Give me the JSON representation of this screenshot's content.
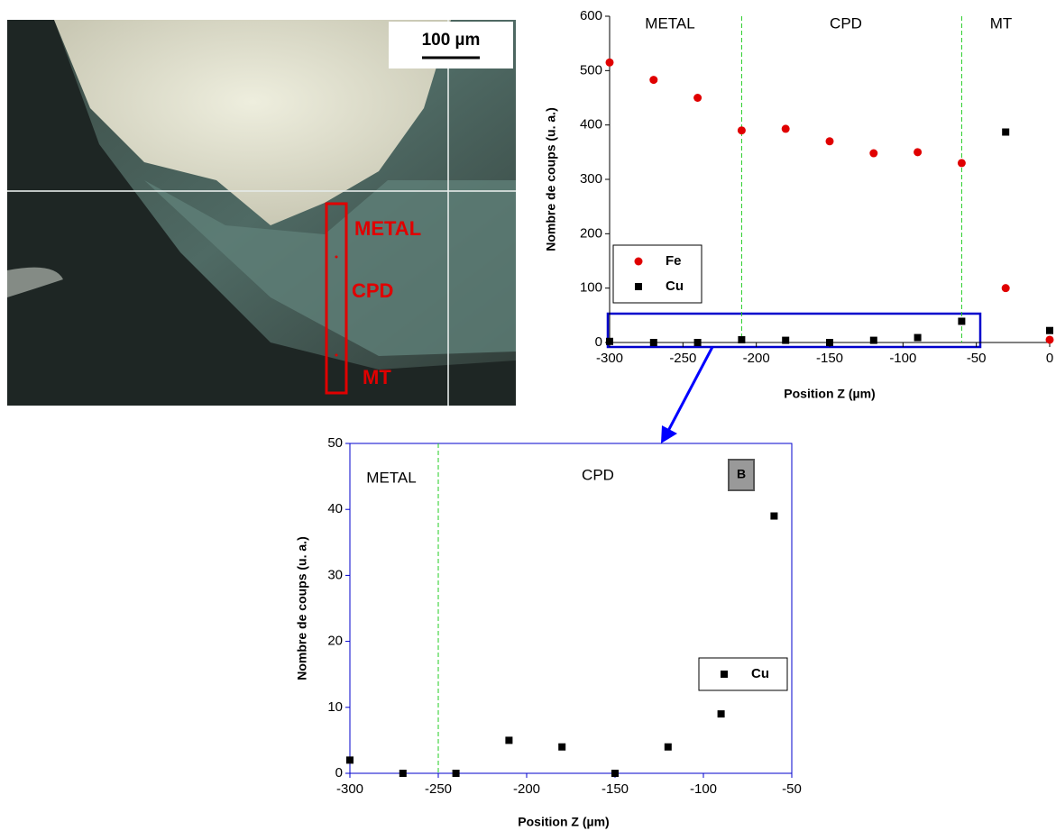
{
  "image": {
    "scale_bar": "100 µm",
    "labels": [
      "METAL",
      "CPD",
      "MT"
    ]
  },
  "chart_data": [
    {
      "type": "scatter",
      "xlabel": "Position Z (µm)",
      "ylabel": "Nombre de coups (u. a.)",
      "x": [
        -300,
        -270,
        -240,
        -210,
        -180,
        -150,
        -120,
        -90,
        -60,
        -30,
        0
      ],
      "series": [
        {
          "name": "Fe",
          "color": "#e00000",
          "marker": "circle",
          "values": [
            515,
            483,
            450,
            390,
            393,
            370,
            348,
            350,
            330,
            100,
            5
          ]
        },
        {
          "name": "Cu",
          "color": "#000000",
          "marker": "square",
          "values": [
            2,
            0,
            0,
            5,
            4,
            0,
            4,
            9,
            39,
            387,
            22
          ]
        }
      ],
      "xlim": [
        -300,
        0
      ],
      "ylim": [
        0,
        600
      ],
      "xticks": [
        -300,
        -250,
        -200,
        -150,
        -100,
        -50,
        0
      ],
      "yticks": [
        0,
        100,
        200,
        300,
        400,
        500,
        600
      ],
      "vlines": [
        -210,
        -60
      ],
      "annotations": [
        "METAL",
        "CPD",
        "MT"
      ],
      "axis_color": "#000000",
      "legend": "lower left",
      "grid": false
    },
    {
      "type": "scatter",
      "xlabel": "Position Z (µm)",
      "ylabel": "Nombre de coups (u. a.)",
      "x": [
        -300,
        -270,
        -240,
        -210,
        -180,
        -150,
        -120,
        -90,
        -60
      ],
      "series": [
        {
          "name": "Cu",
          "color": "#000000",
          "marker": "square",
          "values": [
            2,
            0,
            0,
            5,
            4,
            0,
            4,
            9,
            39
          ]
        }
      ],
      "xlim": [
        -300,
        -50
      ],
      "ylim": [
        0,
        50
      ],
      "xticks": [
        -300,
        -250,
        -200,
        -150,
        -100,
        -50
      ],
      "yticks": [
        0,
        10,
        20,
        30,
        40,
        50
      ],
      "vlines": [
        -250
      ],
      "annotations": [
        "METAL",
        "CPD",
        "B"
      ],
      "axis_color": "#0000cc",
      "legend": "lower right",
      "grid": false
    }
  ]
}
